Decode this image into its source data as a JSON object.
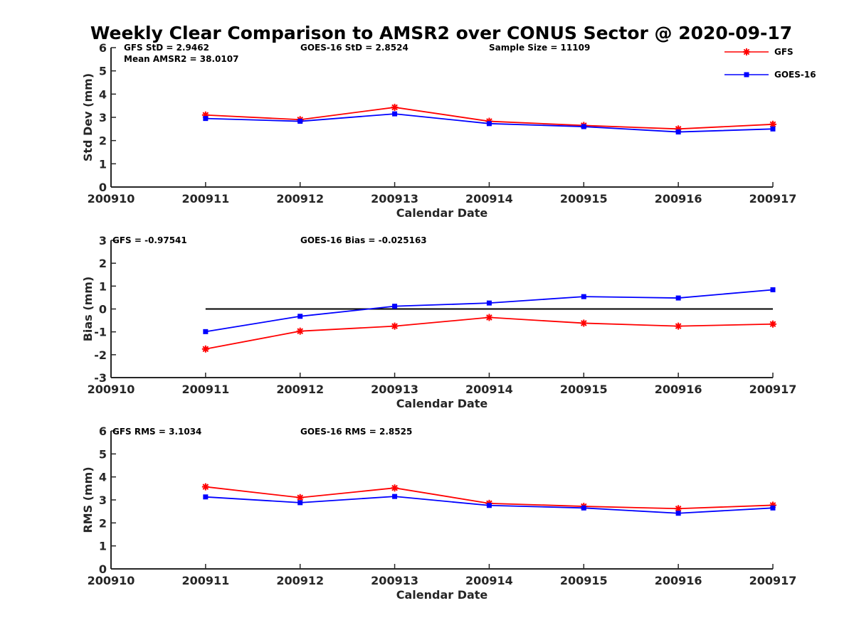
{
  "figure": {
    "title": "Weekly Clear Comparison to AMSR2 over CONUS Sector @ 2020-09-17",
    "legend": {
      "placement": "top-right",
      "entries": [
        {
          "label": "GFS",
          "color": "#ff0000",
          "marker": "asterisk"
        },
        {
          "label": "GOES-16",
          "color": "#0000ff",
          "marker": "square"
        }
      ]
    }
  },
  "chart_data": [
    {
      "type": "line",
      "xlabel": "Calendar Date",
      "ylabel": "Std Dev (mm)",
      "x": [
        "200910",
        "200911",
        "200912",
        "200913",
        "200914",
        "200915",
        "200916",
        "200917"
      ],
      "ylim": [
        0,
        6
      ],
      "yticks": [
        "0",
        "1",
        "2",
        "3",
        "4",
        "5",
        "6"
      ],
      "grid": false,
      "annotations": [
        "GFS StD = 2.9462",
        "Mean AMSR2 = 38.0107",
        "GOES-16 StD = 2.8524",
        "Sample Size = 11109"
      ],
      "series": [
        {
          "name": "GFS",
          "color": "#ff0000",
          "marker": "asterisk",
          "x": [
            "200911",
            "200912",
            "200913",
            "200914",
            "200915",
            "200916",
            "200917"
          ],
          "values": [
            3.1,
            2.9,
            3.43,
            2.83,
            2.65,
            2.5,
            2.7
          ]
        },
        {
          "name": "GOES-16",
          "color": "#0000ff",
          "marker": "square",
          "x": [
            "200911",
            "200912",
            "200913",
            "200914",
            "200915",
            "200916",
            "200917"
          ],
          "values": [
            2.95,
            2.83,
            3.15,
            2.73,
            2.6,
            2.37,
            2.5
          ]
        }
      ]
    },
    {
      "type": "line",
      "xlabel": "Calendar Date",
      "ylabel": "Bias (mm)",
      "x": [
        "200910",
        "200911",
        "200912",
        "200913",
        "200914",
        "200915",
        "200916",
        "200917"
      ],
      "ylim": [
        -3,
        3
      ],
      "yticks": [
        "-3",
        "-2",
        "-1",
        "0",
        "1",
        "2",
        "3"
      ],
      "grid": false,
      "zero_line": true,
      "annotations": [
        "GFS = -0.97541",
        "GOES-16 Bias  = -0.025163"
      ],
      "series": [
        {
          "name": "GFS",
          "color": "#ff0000",
          "marker": "asterisk",
          "x": [
            "200911",
            "200912",
            "200913",
            "200914",
            "200915",
            "200916",
            "200917"
          ],
          "values": [
            -1.75,
            -0.97,
            -0.75,
            -0.37,
            -0.62,
            -0.75,
            -0.66
          ]
        },
        {
          "name": "GOES-16",
          "color": "#0000ff",
          "marker": "square",
          "x": [
            "200911",
            "200912",
            "200913",
            "200914",
            "200915",
            "200916",
            "200917"
          ],
          "values": [
            -0.99,
            -0.32,
            0.12,
            0.26,
            0.54,
            0.48,
            0.84
          ]
        }
      ]
    },
    {
      "type": "line",
      "xlabel": "Calendar Date",
      "ylabel": "RMS (mm)",
      "x": [
        "200910",
        "200911",
        "200912",
        "200913",
        "200914",
        "200915",
        "200916",
        "200917"
      ],
      "ylim": [
        0,
        6
      ],
      "yticks": [
        "0",
        "1",
        "2",
        "3",
        "4",
        "5",
        "6"
      ],
      "grid": false,
      "annotations": [
        "GFS RMS = 3.1034",
        "GOES-16 RMS = 2.8525"
      ],
      "series": [
        {
          "name": "GFS",
          "color": "#ff0000",
          "marker": "asterisk",
          "x": [
            "200911",
            "200912",
            "200913",
            "200914",
            "200915",
            "200916",
            "200917"
          ],
          "values": [
            3.57,
            3.1,
            3.52,
            2.85,
            2.72,
            2.62,
            2.77
          ]
        },
        {
          "name": "GOES-16",
          "color": "#0000ff",
          "marker": "square",
          "x": [
            "200911",
            "200912",
            "200913",
            "200914",
            "200915",
            "200916",
            "200917"
          ],
          "values": [
            3.13,
            2.88,
            3.15,
            2.76,
            2.65,
            2.42,
            2.65
          ]
        }
      ]
    }
  ]
}
